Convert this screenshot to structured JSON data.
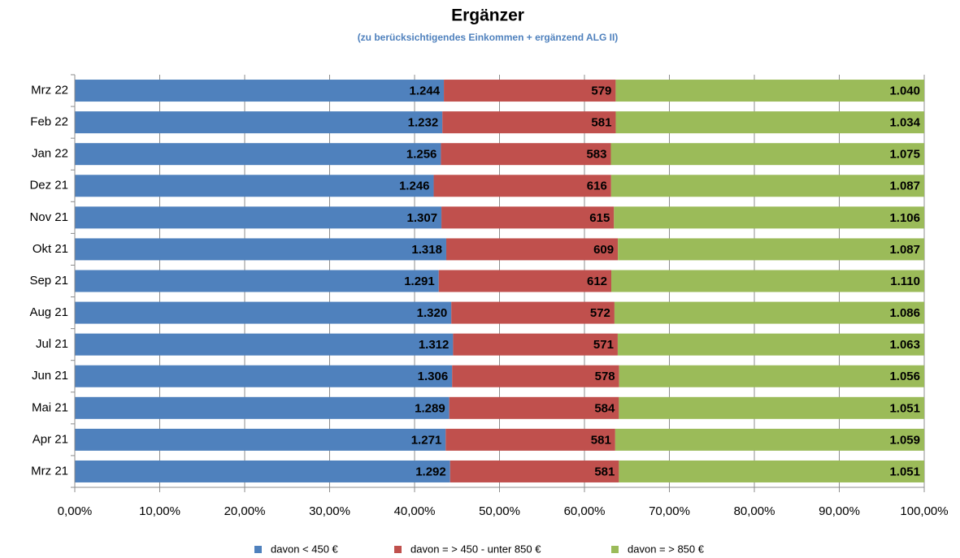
{
  "chart_data": {
    "type": "bar",
    "orientation": "horizontal",
    "stacked": "percent",
    "title": "Ergänzer",
    "subtitle": "(zu berücksichtigendes Einkommen + ergänzend ALG II)",
    "categories": [
      "Mrz 22",
      "Feb 22",
      "Jan 22",
      "Dez 21",
      "Nov 21",
      "Okt 21",
      "Sep 21",
      "Aug 21",
      "Jul 21",
      "Jun 21",
      "Mai 21",
      "Apr 21",
      "Mrz 21"
    ],
    "series": [
      {
        "name": "davon < 450 €",
        "color": "#4f81bd",
        "values": [
          1244,
          1232,
          1256,
          1246,
          1307,
          1318,
          1291,
          1320,
          1312,
          1306,
          1289,
          1271,
          1292
        ],
        "value_labels": [
          "1.244",
          "1.232",
          "1.256",
          "1.246",
          "1.307",
          "1.318",
          "1.291",
          "1.320",
          "1.312",
          "1.306",
          "1.289",
          "1.271",
          "1.292"
        ]
      },
      {
        "name": "davon = > 450 - unter 850 €",
        "color": "#c0504d",
        "values": [
          579,
          581,
          583,
          616,
          615,
          609,
          612,
          572,
          571,
          578,
          584,
          581,
          581
        ]
      },
      {
        "name": "davon = > 850 €",
        "color": "#9bbb59",
        "values": [
          1040,
          1034,
          1075,
          1087,
          1106,
          1087,
          1110,
          1086,
          1063,
          1056,
          1051,
          1059,
          1051
        ],
        "value_labels": [
          "1.040",
          "1.034",
          "1.075",
          "1.087",
          "1.106",
          "1.087",
          "1.110",
          "1.086",
          "1.063",
          "1.056",
          "1.051",
          "1.059",
          "1.051"
        ]
      }
    ],
    "xlim": [
      0,
      100
    ],
    "xticks": [
      {
        "value": 0,
        "label": "0,00%"
      },
      {
        "value": 10,
        "label": "10,00%"
      },
      {
        "value": 20,
        "label": "20,00%"
      },
      {
        "value": 30,
        "label": "30,00%"
      },
      {
        "value": 40,
        "label": "40,00%"
      },
      {
        "value": 50,
        "label": "50,00%"
      },
      {
        "value": 60,
        "label": "60,00%"
      },
      {
        "value": 70,
        "label": "70,00%"
      },
      {
        "value": 80,
        "label": "80,00%"
      },
      {
        "value": 90,
        "label": "90,00%"
      },
      {
        "value": 100,
        "label": "100,00%"
      }
    ],
    "grid": true,
    "legend": "bottom"
  }
}
